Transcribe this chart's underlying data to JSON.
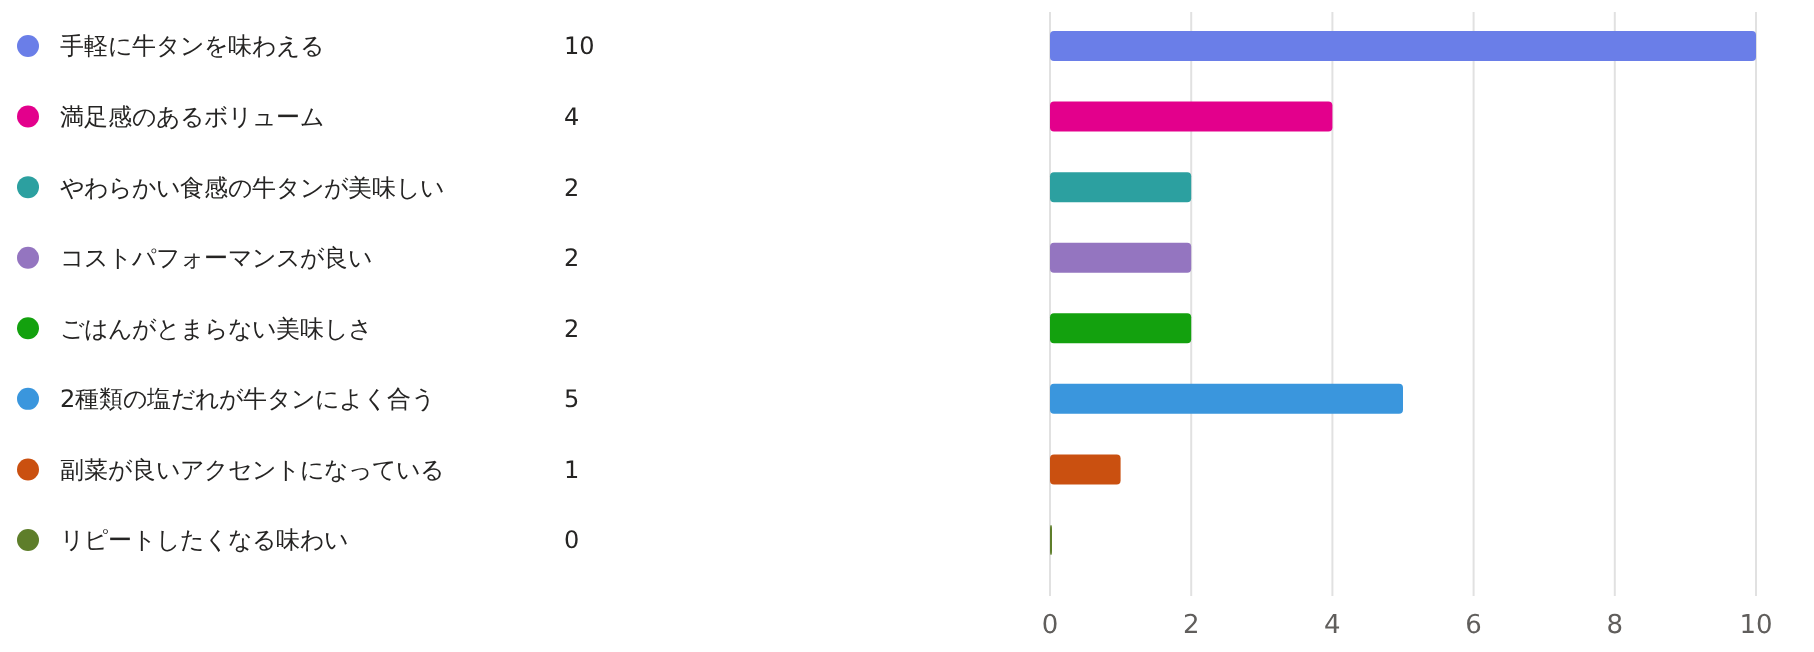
{
  "chart_data": [
    {
      "type": "other",
      "categories": [
        "手軽に牛タンを味わえる",
        "満足感のあるボリューム",
        "やわらかい食感の牛タンが美味しい",
        "コストパフォーマンスが良い",
        "ごはんがとまらない美味しさ",
        "2種類の塩だれが牛タンによく合う",
        "副菜が良いアクセントになっている",
        "リピートしたくなる味わい"
      ],
      "value_labels": [
        "10",
        "4",
        "2",
        "2",
        "2",
        "5",
        "1",
        "0"
      ],
      "colors": [
        "#6a7ee8",
        "#e3008c",
        "#2ca0a0",
        "#9475c0",
        "#13a10e",
        "#3a96dd",
        "#ca5010",
        "#5e7e2a"
      ]
    },
    {
      "type": "bar",
      "orientation": "horizontal",
      "categories": [
        null,
        null,
        null,
        null,
        null,
        null,
        null,
        null
      ],
      "values": [
        10,
        4,
        2,
        2,
        2,
        5,
        1,
        0
      ],
      "colors": [
        "#6a7ee8",
        "#e3008c",
        "#2ca0a0",
        "#9475c0",
        "#13a10e",
        "#3a96dd",
        "#ca5010",
        "#5e7e2a"
      ],
      "xlim": [
        0,
        10
      ],
      "xticks": [
        0,
        2,
        4,
        6,
        8,
        10
      ],
      "grid": "x"
    }
  ]
}
